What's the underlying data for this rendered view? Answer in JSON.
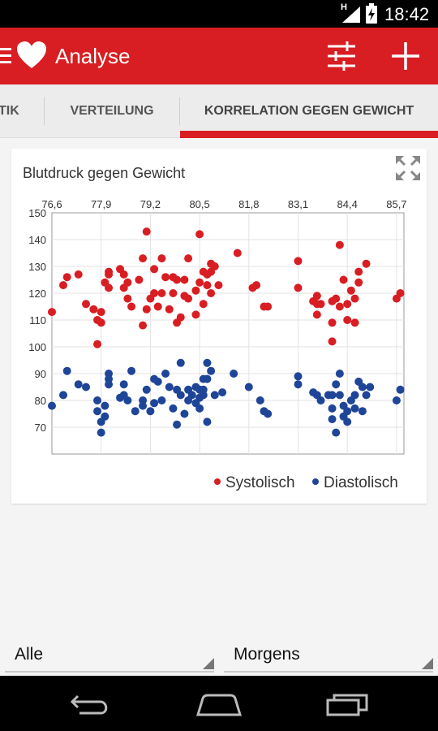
{
  "status_bar": {
    "network": "H",
    "time": "18:42"
  },
  "app_bar": {
    "title": "Analyse",
    "icons": [
      "menu-icon",
      "heart-icon",
      "sliders-icon",
      "add-icon"
    ]
  },
  "tabs": [
    {
      "label": "TIK",
      "selected": false
    },
    {
      "label": "VERTEILUNG",
      "selected": false
    },
    {
      "label": "KORRELATION GEGEN GEWICHT",
      "selected": true
    }
  ],
  "card": {
    "title": "Blutdruck gegen Gewicht"
  },
  "colors": {
    "accent": "#d81e22",
    "systolic": "#d81e22",
    "diastolic": "#1f4598"
  },
  "chart_data": {
    "type": "scatter",
    "title": "Blutdruck gegen Gewicht",
    "x_ticks": [
      "76,6",
      "77,9",
      "79,2",
      "80,5",
      "81,8",
      "83,1",
      "84,4",
      "85,7"
    ],
    "y_ticks": [
      "150",
      "140",
      "130",
      "120",
      "110",
      "100",
      "90",
      "80",
      "70"
    ],
    "xlim": [
      76.6,
      85.7
    ],
    "ylim": [
      65,
      150
    ],
    "grid": true,
    "legend_position": "bottom-right",
    "series": [
      {
        "name": "Systolisch",
        "color": "#d81e22",
        "points": [
          [
            76.6,
            113
          ],
          [
            76.9,
            123
          ],
          [
            77.0,
            126
          ],
          [
            77.3,
            127
          ],
          [
            77.5,
            116
          ],
          [
            77.7,
            114
          ],
          [
            77.8,
            110
          ],
          [
            77.8,
            101
          ],
          [
            77.9,
            113
          ],
          [
            77.9,
            109
          ],
          [
            78.0,
            124
          ],
          [
            78.1,
            128
          ],
          [
            78.1,
            122
          ],
          [
            78.1,
            127
          ],
          [
            78.4,
            129
          ],
          [
            78.5,
            127
          ],
          [
            78.5,
            122
          ],
          [
            78.6,
            124
          ],
          [
            78.6,
            118
          ],
          [
            78.7,
            115
          ],
          [
            78.9,
            125
          ],
          [
            79.0,
            133
          ],
          [
            79.0,
            108
          ],
          [
            79.1,
            143
          ],
          [
            79.1,
            114
          ],
          [
            79.2,
            118
          ],
          [
            79.3,
            129
          ],
          [
            79.3,
            120
          ],
          [
            79.4,
            115
          ],
          [
            79.5,
            133
          ],
          [
            79.5,
            120
          ],
          [
            79.6,
            126
          ],
          [
            79.7,
            114
          ],
          [
            79.8,
            126
          ],
          [
            79.8,
            120
          ],
          [
            79.9,
            109
          ],
          [
            79.9,
            125
          ],
          [
            80.0,
            111
          ],
          [
            80.1,
            125
          ],
          [
            80.1,
            119
          ],
          [
            80.2,
            133
          ],
          [
            80.2,
            118
          ],
          [
            80.4,
            112
          ],
          [
            80.4,
            121
          ],
          [
            80.5,
            142
          ],
          [
            80.5,
            124
          ],
          [
            80.6,
            128
          ],
          [
            80.6,
            116
          ],
          [
            80.7,
            127
          ],
          [
            80.7,
            123
          ],
          [
            80.8,
            131
          ],
          [
            80.8,
            120
          ],
          [
            80.8,
            128
          ],
          [
            80.9,
            130
          ],
          [
            81.0,
            123
          ],
          [
            81.5,
            135
          ],
          [
            81.9,
            122
          ],
          [
            82.0,
            123
          ],
          [
            82.2,
            115
          ],
          [
            82.3,
            115
          ],
          [
            83.1,
            132
          ],
          [
            83.1,
            122
          ],
          [
            83.5,
            117
          ],
          [
            83.6,
            119
          ],
          [
            83.6,
            112
          ],
          [
            83.6,
            116
          ],
          [
            83.7,
            116
          ],
          [
            84.0,
            109
          ],
          [
            84.0,
            117
          ],
          [
            84.0,
            102
          ],
          [
            84.1,
            118
          ],
          [
            84.2,
            115
          ],
          [
            84.2,
            138
          ],
          [
            84.3,
            125
          ],
          [
            84.4,
            116
          ],
          [
            84.4,
            110
          ],
          [
            84.5,
            121
          ],
          [
            84.6,
            118
          ],
          [
            84.6,
            109
          ],
          [
            84.7,
            124
          ],
          [
            84.7,
            128
          ],
          [
            84.9,
            131
          ],
          [
            85.7,
            118
          ],
          [
            85.8,
            120
          ]
        ]
      },
      {
        "name": "Diastolisch",
        "color": "#1f4598",
        "points": [
          [
            76.6,
            78
          ],
          [
            76.9,
            82
          ],
          [
            77.0,
            91
          ],
          [
            77.3,
            86
          ],
          [
            77.5,
            85
          ],
          [
            77.8,
            80
          ],
          [
            77.8,
            76
          ],
          [
            77.9,
            72
          ],
          [
            77.9,
            68
          ],
          [
            78.0,
            74
          ],
          [
            78.0,
            78
          ],
          [
            78.1,
            90
          ],
          [
            78.1,
            88
          ],
          [
            78.1,
            86
          ],
          [
            78.4,
            81
          ],
          [
            78.5,
            86
          ],
          [
            78.5,
            82
          ],
          [
            78.6,
            80
          ],
          [
            78.7,
            91
          ],
          [
            78.8,
            76
          ],
          [
            79.0,
            80
          ],
          [
            79.0,
            78
          ],
          [
            79.1,
            84
          ],
          [
            79.2,
            76
          ],
          [
            79.3,
            88
          ],
          [
            79.3,
            79
          ],
          [
            79.4,
            87
          ],
          [
            79.5,
            80
          ],
          [
            79.6,
            90
          ],
          [
            79.7,
            85
          ],
          [
            79.8,
            77
          ],
          [
            79.9,
            84
          ],
          [
            79.9,
            71
          ],
          [
            80.0,
            82
          ],
          [
            80.0,
            94
          ],
          [
            80.1,
            75
          ],
          [
            80.2,
            84
          ],
          [
            80.2,
            80
          ],
          [
            80.3,
            82
          ],
          [
            80.4,
            79
          ],
          [
            80.4,
            85
          ],
          [
            80.5,
            84
          ],
          [
            80.5,
            81
          ],
          [
            80.5,
            77
          ],
          [
            80.6,
            88
          ],
          [
            80.6,
            84
          ],
          [
            80.6,
            82
          ],
          [
            80.7,
            94
          ],
          [
            80.7,
            88
          ],
          [
            80.7,
            72
          ],
          [
            80.8,
            91
          ],
          [
            80.9,
            82
          ],
          [
            81.1,
            83
          ],
          [
            81.4,
            90
          ],
          [
            81.8,
            85
          ],
          [
            82.1,
            80
          ],
          [
            82.2,
            76
          ],
          [
            82.3,
            75
          ],
          [
            83.1,
            89
          ],
          [
            83.1,
            86
          ],
          [
            83.5,
            83
          ],
          [
            83.6,
            82
          ],
          [
            83.7,
            80
          ],
          [
            83.9,
            82
          ],
          [
            84.0,
            82
          ],
          [
            84.0,
            77
          ],
          [
            84.0,
            73
          ],
          [
            84.1,
            68
          ],
          [
            84.1,
            86
          ],
          [
            84.2,
            90
          ],
          [
            84.2,
            82
          ],
          [
            84.3,
            78
          ],
          [
            84.3,
            74
          ],
          [
            84.4,
            72
          ],
          [
            84.4,
            76
          ],
          [
            84.5,
            80
          ],
          [
            84.6,
            82
          ],
          [
            84.6,
            77
          ],
          [
            84.7,
            87
          ],
          [
            84.8,
            85
          ],
          [
            84.8,
            76
          ],
          [
            84.9,
            82
          ],
          [
            85.0,
            85
          ],
          [
            85.7,
            80
          ],
          [
            85.8,
            84
          ]
        ]
      }
    ]
  },
  "filters": {
    "left_value": "Alle",
    "right_value": "Morgens"
  },
  "nav_bar": {
    "icons": [
      "back-icon",
      "home-icon",
      "recent-apps-icon"
    ]
  }
}
